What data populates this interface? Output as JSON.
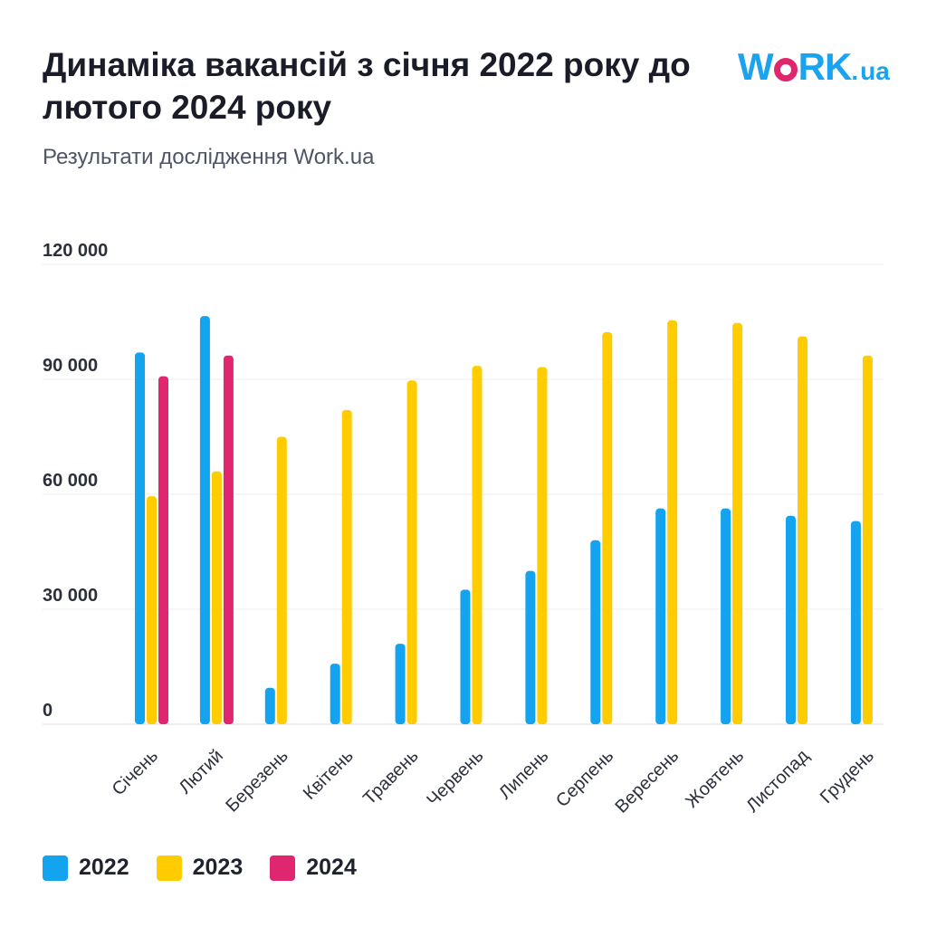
{
  "header": {
    "title": "Динаміка вакансій з січня 2022 року до лютого 2024 року",
    "subtitle": "Результати дослідження Work.ua"
  },
  "logo": {
    "text_w": "W",
    "text_rk": "RK",
    "text_dot": ".",
    "text_ua": "ua",
    "color": "#1aa3ef",
    "accent": "#e0266e"
  },
  "chart_data": {
    "type": "bar",
    "title": "Динаміка вакансій з січня 2022 року до лютого 2024 року",
    "subtitle": "Результати дослідження Work.ua",
    "xlabel": "",
    "ylabel": "",
    "ylim": [
      0,
      120000
    ],
    "yticks": [
      0,
      30000,
      60000,
      90000,
      120000
    ],
    "ytick_labels": [
      "0",
      "30 000",
      "60 000",
      "90 000",
      "120 000"
    ],
    "grid": true,
    "legend_position": "bottom-left",
    "categories": [
      "Січень",
      "Лютий",
      "Березень",
      "Квітень",
      "Травень",
      "Червень",
      "Липень",
      "Серпень",
      "Вересень",
      "Жовтень",
      "Листопад",
      "Грудень"
    ],
    "series": [
      {
        "name": "2022",
        "color": "#14a3ee",
        "values": [
          97000,
          106500,
          9500,
          15800,
          21000,
          35100,
          40000,
          48000,
          56300,
          56300,
          54400,
          53000
        ]
      },
      {
        "name": "2023",
        "color": "#ffcc00",
        "values": [
          59500,
          66000,
          75000,
          82000,
          89700,
          93500,
          93200,
          102300,
          105400,
          104700,
          101200,
          96200
        ]
      },
      {
        "name": "2024",
        "color": "#e0266e",
        "values": [
          90800,
          96200,
          null,
          null,
          null,
          null,
          null,
          null,
          null,
          null,
          null,
          null
        ]
      }
    ]
  }
}
